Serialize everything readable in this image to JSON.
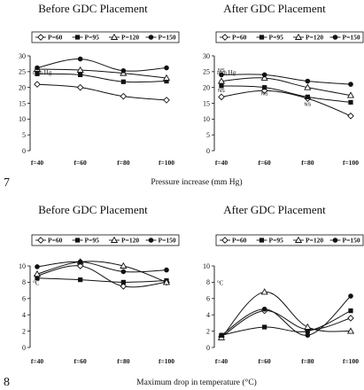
{
  "figures": [
    {
      "number": "7",
      "xlabel": "Pressure increase (mm Hg)"
    },
    {
      "number": "8",
      "xlabel": "Maximum drop in temperature (°C)"
    }
  ],
  "legend_entries": [
    "P=60",
    "P=95",
    "P=120",
    "P=150"
  ],
  "series_styles": [
    {
      "marker": "diamond-open"
    },
    {
      "marker": "square-filled"
    },
    {
      "marker": "triangle-open"
    },
    {
      "marker": "circle-filled"
    }
  ],
  "chart_data": [
    {
      "type": "line",
      "title": "Before GDC Placement",
      "ylabel": "mm Hg",
      "categories": [
        "f=40",
        "f=60",
        "f=80",
        "f=100"
      ],
      "ylim": [
        0,
        30
      ],
      "yticks": [
        0,
        5,
        10,
        15,
        20,
        25,
        30
      ],
      "grid": false,
      "legend": "top",
      "series": [
        {
          "name": "P=60",
          "values": [
            21,
            20,
            17.2,
            16
          ]
        },
        {
          "name": "P=95",
          "values": [
            24.3,
            24,
            21.8,
            22
          ]
        },
        {
          "name": "P=120",
          "values": [
            25.8,
            25.5,
            24.5,
            23
          ]
        },
        {
          "name": "P=150",
          "values": [
            26.2,
            29,
            25.3,
            26.2
          ]
        }
      ],
      "annotations": []
    },
    {
      "type": "line",
      "title": "After GDC Placement",
      "ylabel": "mm Hg",
      "categories": [
        "f=40",
        "f=60",
        "f=80",
        "f=100"
      ],
      "ylim": [
        0,
        30
      ],
      "yticks": [
        0,
        5,
        10,
        15,
        20,
        25,
        30
      ],
      "grid": false,
      "legend": "top",
      "series": [
        {
          "name": "P=60",
          "values": [
            17,
            19,
            16.5,
            11
          ]
        },
        {
          "name": "P=95",
          "values": [
            20.5,
            20,
            17,
            15.3
          ]
        },
        {
          "name": "P=120",
          "values": [
            22,
            23,
            20,
            17.5
          ]
        },
        {
          "name": "P=150",
          "values": [
            24,
            24,
            22,
            21
          ]
        }
      ],
      "annotations": [
        {
          "text": "NS",
          "x": "f=40",
          "y": 25
        },
        {
          "text": "NS",
          "x": "f=40",
          "y": 18.5
        },
        {
          "text": "NS",
          "x": "f=60",
          "y": 17.5
        },
        {
          "text": "NS",
          "x": "f=80",
          "y": 14.2
        }
      ]
    },
    {
      "type": "line",
      "title": "Before GDC Placement",
      "ylabel": "°C",
      "categories": [
        "f=40",
        "f=60",
        "f=80",
        "f=100"
      ],
      "ylim": [
        0,
        10
      ],
      "yticks": [
        0,
        2,
        4,
        6,
        8,
        10
      ],
      "grid": false,
      "legend": "top",
      "series": [
        {
          "name": "P=60",
          "values": [
            8.8,
            10,
            7.5,
            8
          ]
        },
        {
          "name": "P=95",
          "values": [
            8.5,
            8.3,
            8,
            8.2
          ]
        },
        {
          "name": "P=120",
          "values": [
            9,
            10.5,
            10,
            8
          ]
        },
        {
          "name": "P=150",
          "values": [
            9.9,
            10.5,
            9.3,
            9.5
          ]
        }
      ],
      "annotations": []
    },
    {
      "type": "line",
      "title": "After GDC Placement",
      "ylabel": "°C",
      "categories": [
        "f=40",
        "f=60",
        "f=80",
        "f=100"
      ],
      "ylim": [
        0,
        10
      ],
      "yticks": [
        0,
        2,
        4,
        6,
        8,
        10
      ],
      "grid": false,
      "legend": "top",
      "series": [
        {
          "name": "P=60",
          "values": [
            1.3,
            4.5,
            2.2,
            3.6
          ]
        },
        {
          "name": "P=95",
          "values": [
            1.5,
            2.5,
            2,
            4.5
          ]
        },
        {
          "name": "P=120",
          "values": [
            1.2,
            6.8,
            2.5,
            2
          ]
        },
        {
          "name": "P=150",
          "values": [
            1.5,
            4.7,
            1.5,
            6.3
          ]
        }
      ],
      "annotations": []
    }
  ]
}
